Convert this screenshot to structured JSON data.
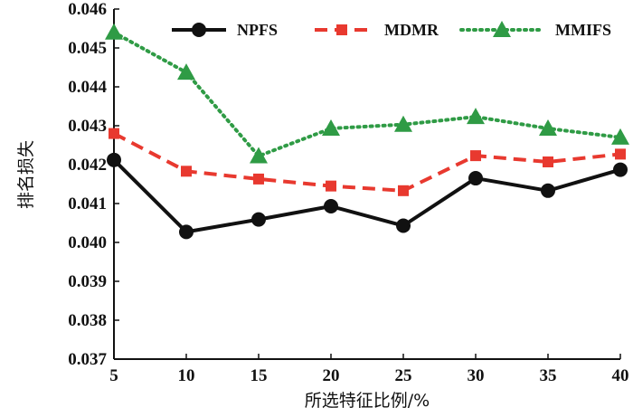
{
  "chart_data": {
    "type": "line",
    "xlabel": "所选特征比例/%",
    "ylabel": "排名损失",
    "x": [
      5,
      10,
      15,
      20,
      25,
      30,
      35,
      40
    ],
    "xlim": [
      5,
      40
    ],
    "ylim": [
      0.037,
      0.046
    ],
    "x_ticks": [
      "5",
      "10",
      "15",
      "20",
      "25",
      "30",
      "35",
      "40"
    ],
    "y_ticks": [
      "0.037",
      "0.038",
      "0.039",
      "0.040",
      "0.041",
      "0.042",
      "0.043",
      "0.044",
      "0.045",
      "0.046"
    ],
    "grid": false,
    "legend_position": "top",
    "series": [
      {
        "name": "NPFS",
        "color": "#111111",
        "line_style": "solid",
        "marker": "circle",
        "values": [
          0.04212,
          0.04027,
          0.04059,
          0.04093,
          0.04043,
          0.04165,
          0.04133,
          0.04187
        ]
      },
      {
        "name": "MDMR",
        "color": "#e8392f",
        "line_style": "dashed",
        "marker": "square",
        "values": [
          0.0428,
          0.04183,
          0.04163,
          0.04145,
          0.04133,
          0.04223,
          0.04207,
          0.04227
        ]
      },
      {
        "name": "MMIFS",
        "color": "#2f9b45",
        "line_style": "dotted",
        "marker": "triangle",
        "values": [
          0.0454,
          0.04437,
          0.04222,
          0.04293,
          0.04303,
          0.04323,
          0.04293,
          0.0427
        ]
      }
    ]
  }
}
